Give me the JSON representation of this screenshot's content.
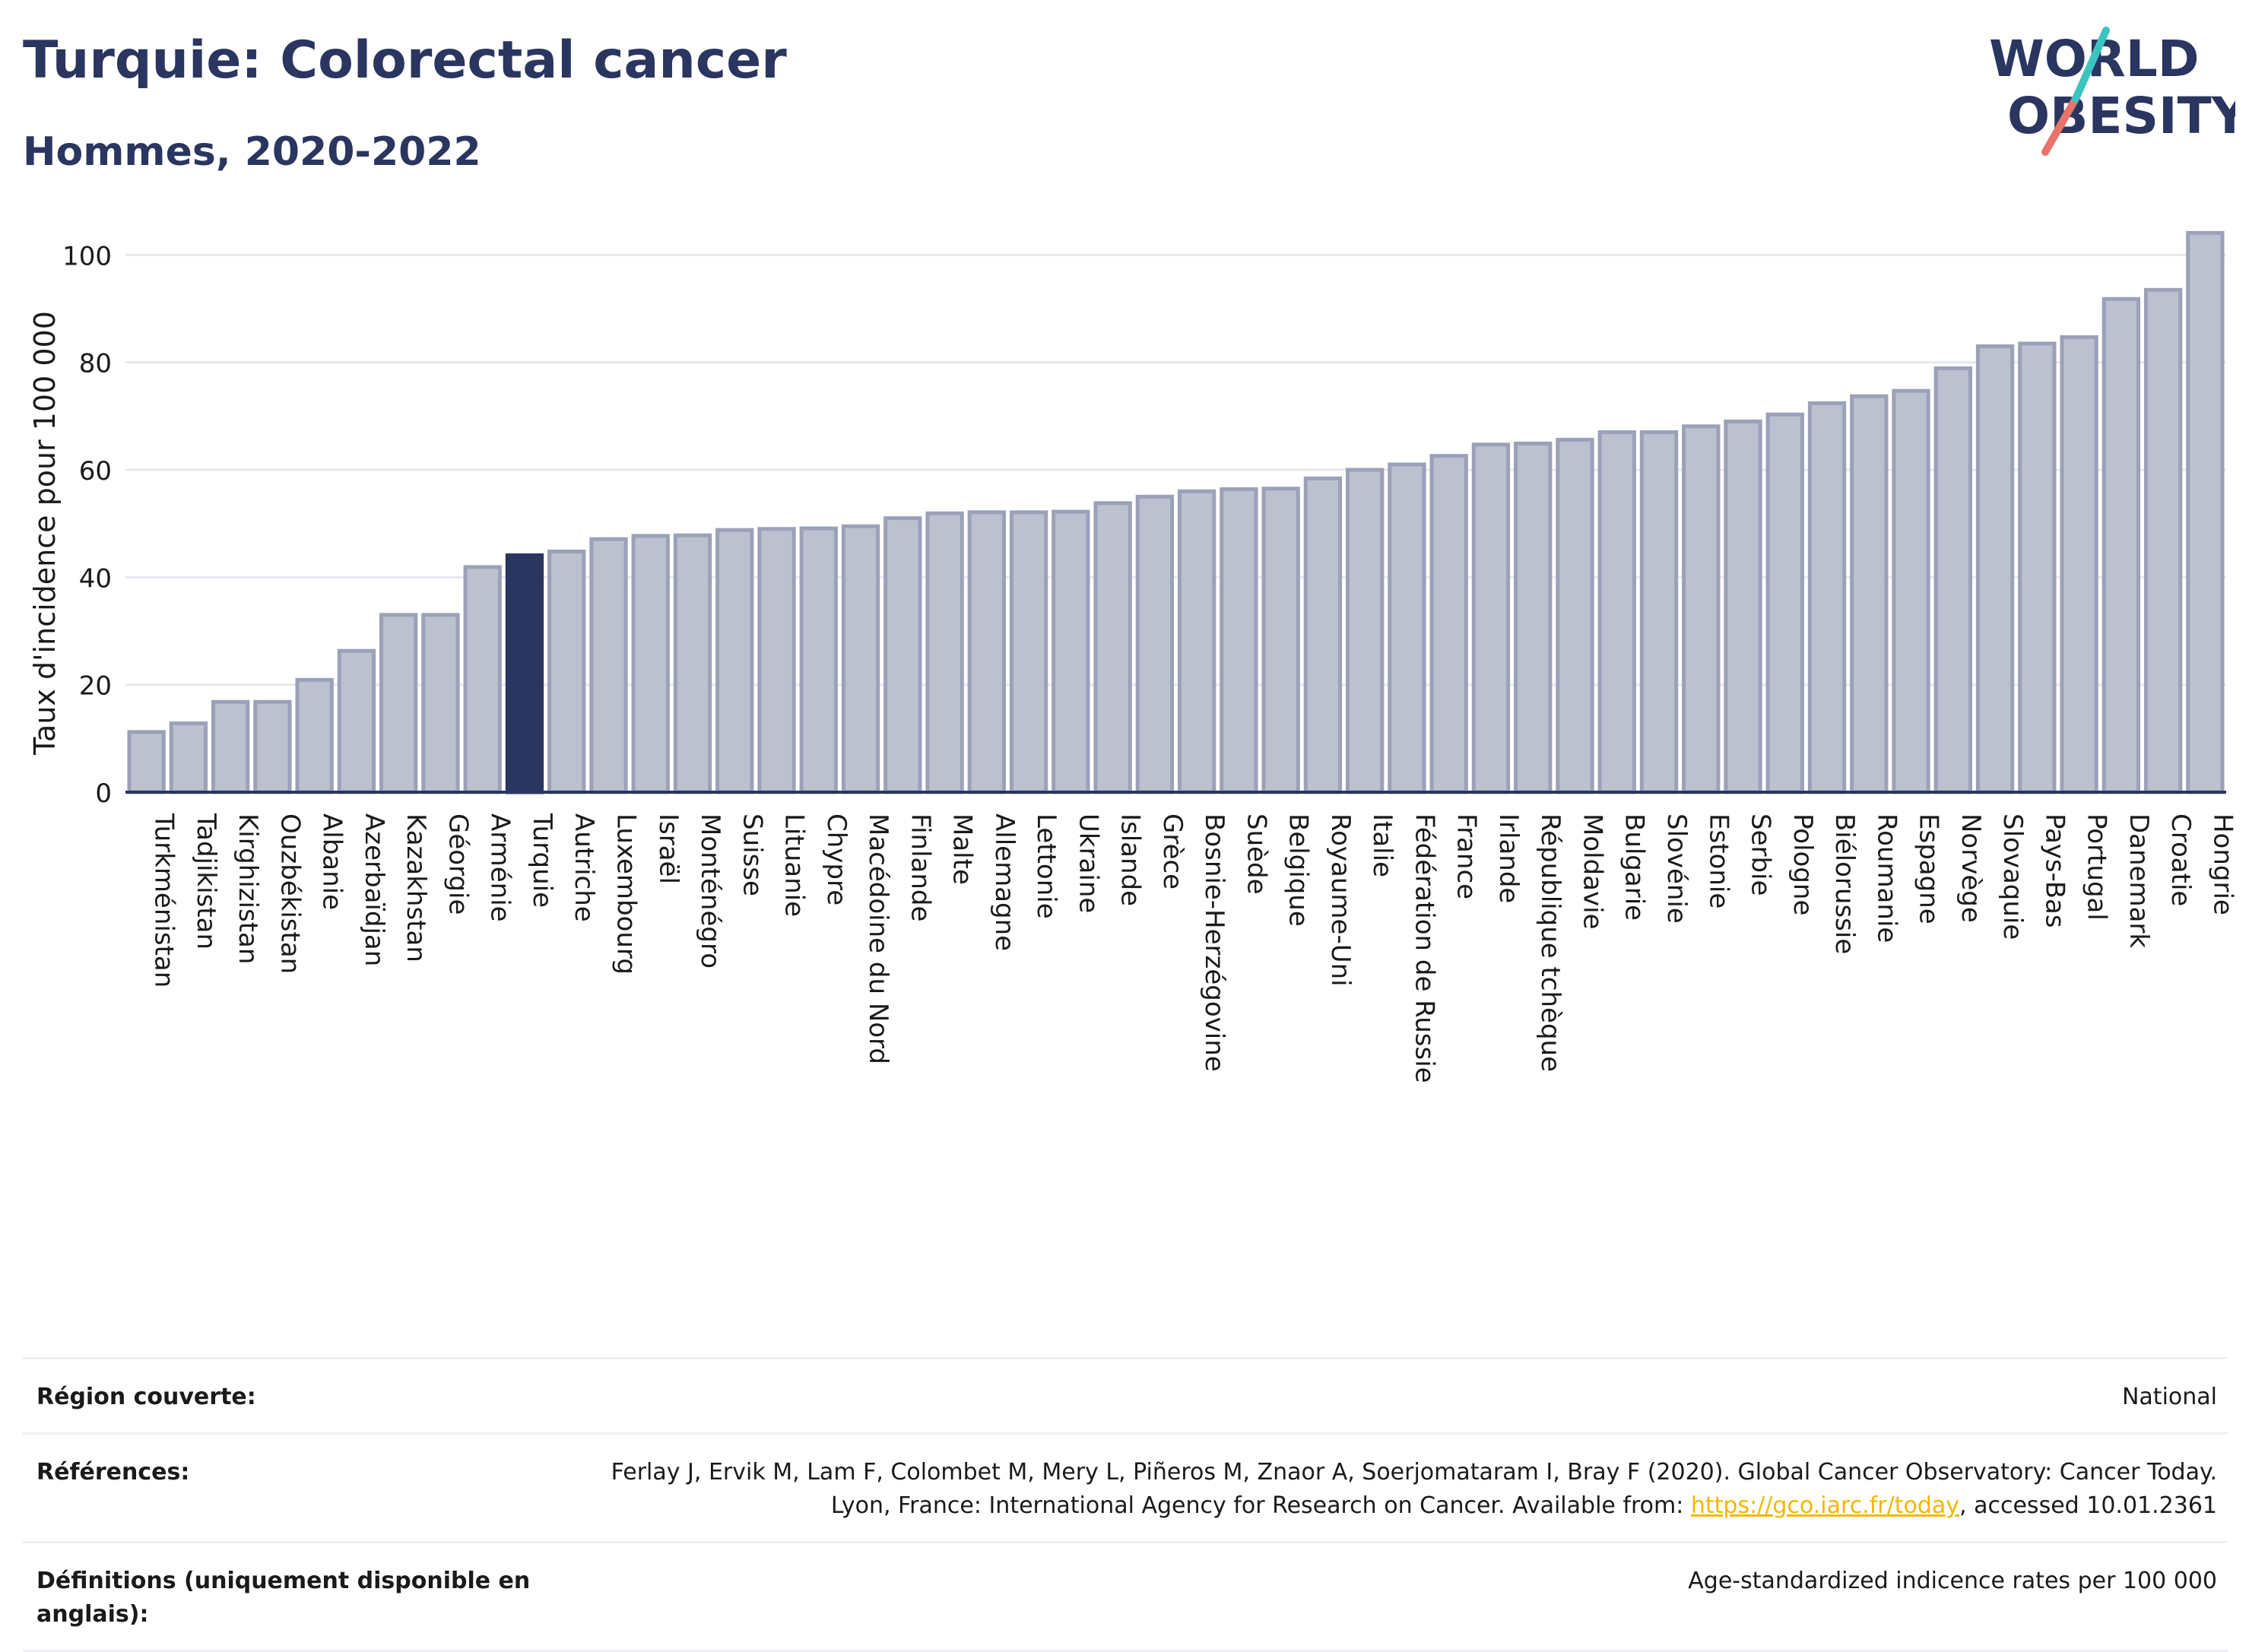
{
  "header": {
    "title": "Turquie: Colorectal cancer",
    "subtitle": "Hommes, 2020-2022"
  },
  "logo": {
    "line1": "WORLD",
    "line2": "OBESITY",
    "colors": [
      "#2a3560",
      "#3cc4c0",
      "#e8736b"
    ]
  },
  "colors": {
    "bar": "#bcc1d0",
    "bar_stroke": "#9aa1b8",
    "highlight": "#2a3560",
    "grid": "#e6e8ee",
    "axis": "#2a3560"
  },
  "chart_data": {
    "type": "bar",
    "ylabel": "Taux d'incidence pour 100 000",
    "ylim": [
      0,
      105
    ],
    "yticks": [
      0,
      20,
      40,
      60,
      80,
      100
    ],
    "grid": true,
    "highlight": "Turquie",
    "categories": [
      "Turkménistan",
      "Tadjikistan",
      "Kirghizistan",
      "Ouzbékistan",
      "Albanie",
      "Azerbaïdjan",
      "Kazakhstan",
      "Géorgie",
      "Arménie",
      "Turquie",
      "Autriche",
      "Luxembourg",
      "Israël",
      "Monténégro",
      "Suisse",
      "Lituanie",
      "Chypre",
      "Macédoine du Nord",
      "Finlande",
      "Malte",
      "Allemagne",
      "Lettonie",
      "Ukraine",
      "Islande",
      "Grèce",
      "Bosnie-Herzégovine",
      "Suède",
      "Belgique",
      "Royaume-Uni",
      "Italie",
      "Fédération de Russie",
      "France",
      "Irlande",
      "République tchèque",
      "Moldavie",
      "Bulgarie",
      "Slovénie",
      "Estonie",
      "Serbie",
      "Pologne",
      "Biélorussie",
      "Roumanie",
      "Espagne",
      "Norvège",
      "Slovaquie",
      "Pays-Bas",
      "Portugal",
      "Danemark",
      "Croatie",
      "Hongrie"
    ],
    "values": [
      11.2,
      12.8,
      16.8,
      16.8,
      20.9,
      26.3,
      33.0,
      33.0,
      41.9,
      44.1,
      44.8,
      47.1,
      47.7,
      47.8,
      48.8,
      49.0,
      49.1,
      49.5,
      51.0,
      51.9,
      52.1,
      52.1,
      52.2,
      53.8,
      55.0,
      56.0,
      56.4,
      56.5,
      58.4,
      60.0,
      61.0,
      62.6,
      64.7,
      64.9,
      65.6,
      67.0,
      67.0,
      68.1,
      69.0,
      70.3,
      72.4,
      73.7,
      74.7,
      78.9,
      83.0,
      83.5,
      84.7,
      91.8,
      93.5,
      104.1
    ]
  },
  "meta": {
    "region_label": "Région couverte:",
    "region_value": "National",
    "refs_label": "Références:",
    "refs_text_1": "Ferlay J, Ervik M, Lam F, Colombet M, Mery L, Piñeros M, Znaor A, Soerjomataram I, Bray F (2020). Global Cancer Observatory: Cancer Today. Lyon, France: International Agency for Research on Cancer. Available from: ",
    "refs_link": "https://gco.iarc.fr/today",
    "refs_text_2": ", accessed 10.01.2361",
    "defs_label": "Définitions (uniquement disponible en anglais):",
    "defs_value": "Age-standardized indicence rates per 100 000"
  }
}
